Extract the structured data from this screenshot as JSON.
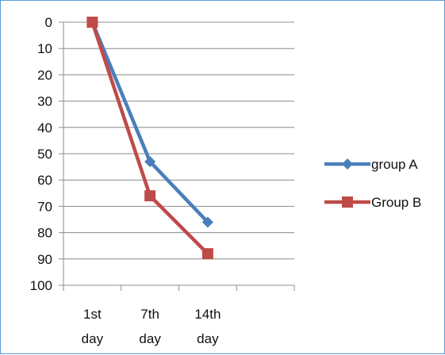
{
  "chart_data": {
    "type": "line",
    "title": "",
    "xlabel": "",
    "ylabel": "",
    "categories": [
      [
        "1st",
        "day"
      ],
      [
        "7th",
        "day"
      ],
      [
        "14th",
        "day"
      ]
    ],
    "x_slots": 4,
    "ylim": [
      0,
      100
    ],
    "y_reversed": true,
    "y_ticks": [
      0,
      10,
      20,
      30,
      40,
      50,
      60,
      70,
      80,
      90,
      100
    ],
    "grid": true,
    "legend_position": "right",
    "series": [
      {
        "name": "group A",
        "values": [
          0,
          53,
          76
        ],
        "color": "#4a7ebb",
        "marker": "diamond"
      },
      {
        "name": "Group B",
        "values": [
          0,
          66,
          88
        ],
        "color": "#be4b48",
        "marker": "square"
      }
    ]
  }
}
